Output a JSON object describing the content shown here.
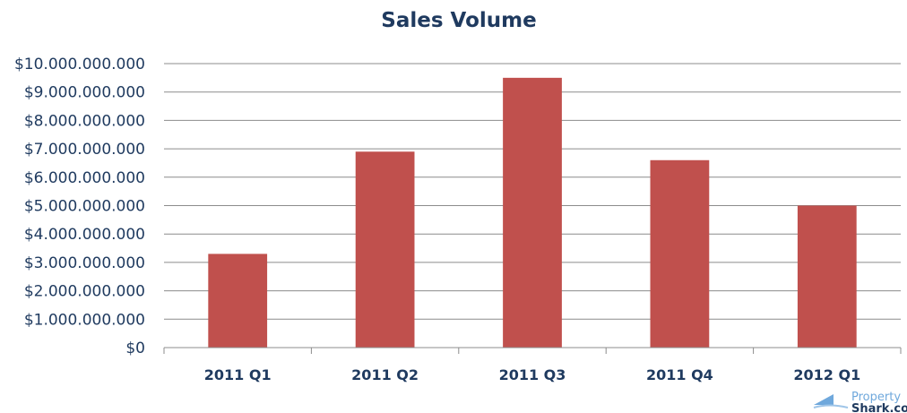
{
  "chart_data": {
    "type": "bar",
    "title": "Sales Volume",
    "xlabel": "",
    "ylabel": "",
    "categories": [
      "2011 Q1",
      "2011 Q2",
      "2011 Q3",
      "2011 Q4",
      "2012 Q1"
    ],
    "values": [
      3300000000,
      6900000000,
      9500000000,
      6600000000,
      5000000000
    ],
    "ylim": [
      0,
      10000000000
    ],
    "yticks": [
      0,
      1000000000,
      2000000000,
      3000000000,
      4000000000,
      5000000000,
      6000000000,
      7000000000,
      8000000000,
      9000000000,
      10000000000
    ],
    "ytick_labels": [
      "$0",
      "$1.000.000.000",
      "$2.000.000.000",
      "$3.000.000.000",
      "$4.000.000.000",
      "$5.000.000.000",
      "$6.000.000.000",
      "$7.000.000.000",
      "$8.000.000.000",
      "$9.000.000.000",
      "$10.000.000.000"
    ],
    "grid": true,
    "legend": "none",
    "bar_color": "#c0504d",
    "text_color": "#1f3a5f"
  },
  "watermark": {
    "word1": "Property",
    "word2": "Shark.com",
    "icon": "shark-fin-icon"
  }
}
